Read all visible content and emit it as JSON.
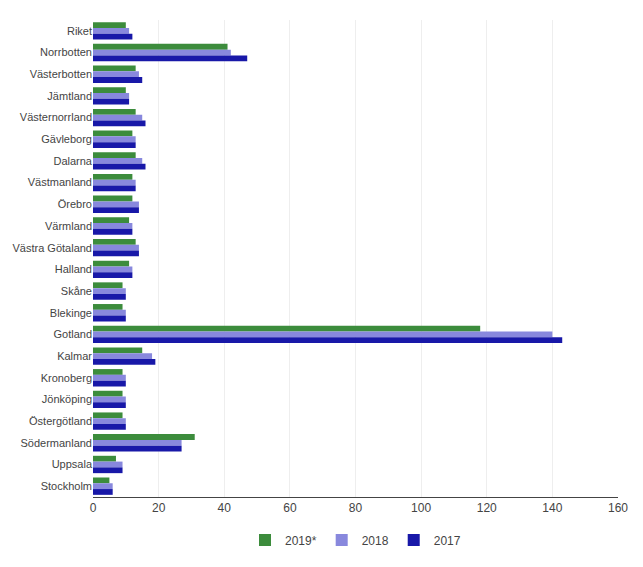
{
  "chart_data": {
    "type": "bar",
    "orientation": "horizontal",
    "categories": [
      "Riket",
      "Norrbotten",
      "Västerbotten",
      "Jämtland",
      "Västernorrland",
      "Gävleborg",
      "Dalarna",
      "Västmanland",
      "Örebro",
      "Värmland",
      "Västra Götaland",
      "Halland",
      "Skåne",
      "Blekinge",
      "Gotland",
      "Kalmar",
      "Kronoberg",
      "Jönköping",
      "Östergötland",
      "Södermanland",
      "Uppsala",
      "Stockholm"
    ],
    "series": [
      {
        "name": "2019*",
        "color": "#3c8c3c",
        "values": [
          10,
          41,
          13,
          10,
          13,
          12,
          13,
          12,
          12,
          11,
          13,
          11,
          9,
          9,
          118,
          15,
          9,
          9,
          9,
          31,
          7,
          5
        ]
      },
      {
        "name": "2018",
        "color": "#8888dd",
        "values": [
          11,
          42,
          14,
          11,
          15,
          13,
          15,
          13,
          14,
          12,
          14,
          12,
          10,
          10,
          140,
          18,
          10,
          10,
          10,
          27,
          9,
          6
        ]
      },
      {
        "name": "2017",
        "color": "#1818a8",
        "values": [
          12,
          47,
          15,
          11,
          16,
          13,
          16,
          13,
          14,
          12,
          14,
          12,
          10,
          10,
          143,
          19,
          10,
          10,
          10,
          27,
          9,
          6
        ]
      }
    ],
    "xlim": [
      0,
      160
    ],
    "xticks": [
      0,
      20,
      40,
      60,
      80,
      100,
      120,
      140,
      160
    ],
    "grid": true,
    "legend": "bottom"
  }
}
